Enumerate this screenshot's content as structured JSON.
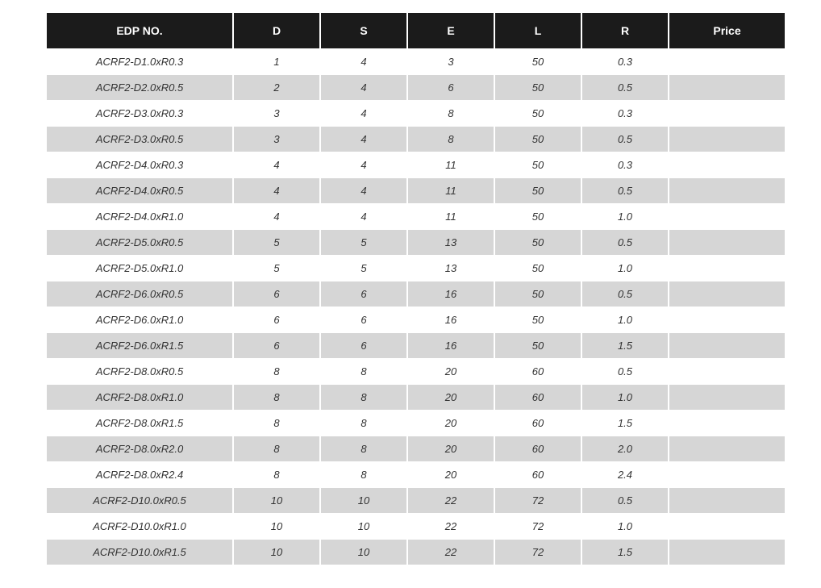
{
  "table": {
    "headers": [
      "EDP  NO.",
      "D",
      "S",
      "E",
      "L",
      "R",
      "Price"
    ],
    "rows": [
      [
        "ACRF2-D1.0xR0.3",
        "1",
        "4",
        "3",
        "50",
        "0.3",
        ""
      ],
      [
        "ACRF2-D2.0xR0.5",
        "2",
        "4",
        "6",
        "50",
        "0.5",
        ""
      ],
      [
        "ACRF2-D3.0xR0.3",
        "3",
        "4",
        "8",
        "50",
        "0.3",
        ""
      ],
      [
        "ACRF2-D3.0xR0.5",
        "3",
        "4",
        "8",
        "50",
        "0.5",
        ""
      ],
      [
        "ACRF2-D4.0xR0.3",
        "4",
        "4",
        "11",
        "50",
        "0.3",
        ""
      ],
      [
        "ACRF2-D4.0xR0.5",
        "4",
        "4",
        "11",
        "50",
        "0.5",
        ""
      ],
      [
        "ACRF2-D4.0xR1.0",
        "4",
        "4",
        "11",
        "50",
        "1.0",
        ""
      ],
      [
        "ACRF2-D5.0xR0.5",
        "5",
        "5",
        "13",
        "50",
        "0.5",
        ""
      ],
      [
        "ACRF2-D5.0xR1.0",
        "5",
        "5",
        "13",
        "50",
        "1.0",
        ""
      ],
      [
        "ACRF2-D6.0xR0.5",
        "6",
        "6",
        "16",
        "50",
        "0.5",
        ""
      ],
      [
        "ACRF2-D6.0xR1.0",
        "6",
        "6",
        "16",
        "50",
        "1.0",
        ""
      ],
      [
        "ACRF2-D6.0xR1.5",
        "6",
        "6",
        "16",
        "50",
        "1.5",
        ""
      ],
      [
        "ACRF2-D8.0xR0.5",
        "8",
        "8",
        "20",
        "60",
        "0.5",
        ""
      ],
      [
        "ACRF2-D8.0xR1.0",
        "8",
        "8",
        "20",
        "60",
        "1.0",
        ""
      ],
      [
        "ACRF2-D8.0xR1.5",
        "8",
        "8",
        "20",
        "60",
        "1.5",
        ""
      ],
      [
        "ACRF2-D8.0xR2.0",
        "8",
        "8",
        "20",
        "60",
        "2.0",
        ""
      ],
      [
        "ACRF2-D8.0xR2.4",
        "8",
        "8",
        "20",
        "60",
        "2.4",
        ""
      ],
      [
        "ACRF2-D10.0xR0.5",
        "10",
        "10",
        "22",
        "72",
        "0.5",
        ""
      ],
      [
        "ACRF2-D10.0xR1.0",
        "10",
        "10",
        "22",
        "72",
        "1.0",
        ""
      ],
      [
        "ACRF2-D10.0xR1.5",
        "10",
        "10",
        "22",
        "72",
        "1.5",
        ""
      ]
    ]
  },
  "colors": {
    "header_bg": "#1b1b1b",
    "alt_row_bg": "#d6d6d6",
    "text": "#333333"
  }
}
